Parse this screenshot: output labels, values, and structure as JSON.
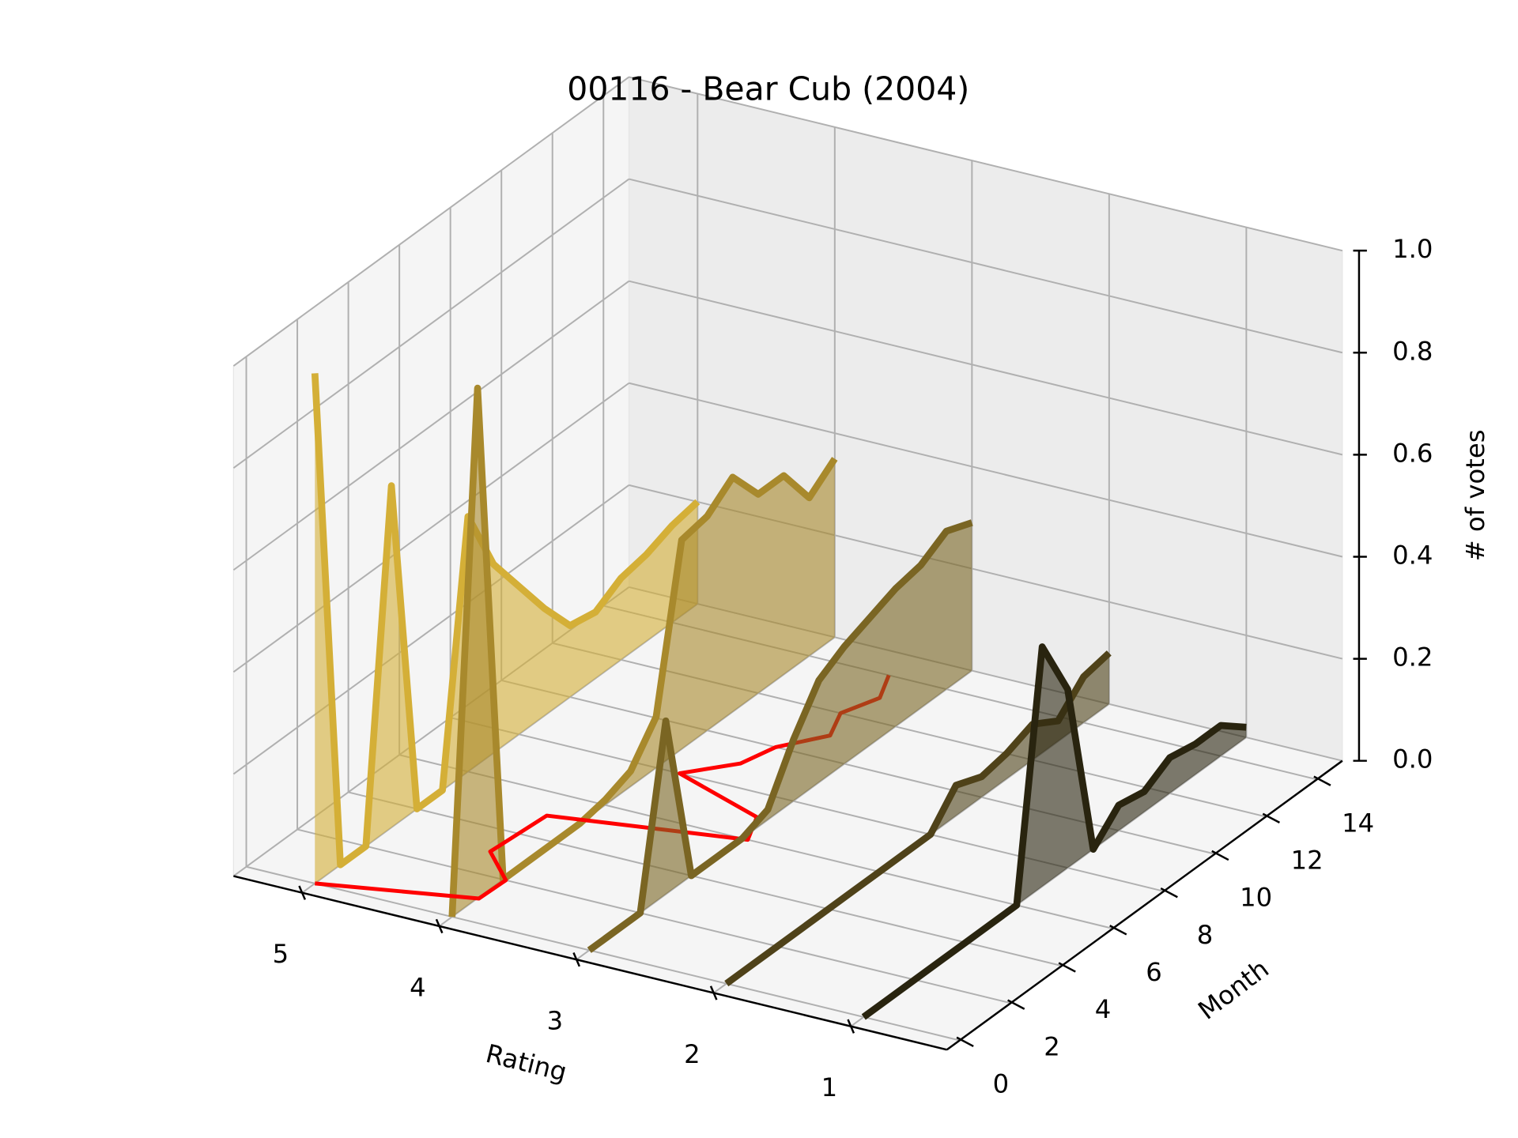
{
  "chart_data": {
    "type": "line3d",
    "title": "00116 - Bear Cub (2004)",
    "xlabel": "Rating",
    "ylabel": "Month",
    "zlabel": "# of votes",
    "xlim": [
      0.3,
      5.5
    ],
    "xticks": [
      5,
      4,
      3,
      2,
      1
    ],
    "ylim": [
      -0.5,
      15
    ],
    "yticks": [
      0,
      2,
      4,
      6,
      8,
      10,
      12,
      14
    ],
    "zlim": [
      0,
      1
    ],
    "zticks": [
      {
        "value": 0,
        "label": "0.0"
      },
      0.2,
      0.4,
      0.6,
      0.8,
      {
        "value": 1,
        "label": "1.0"
      }
    ],
    "grid": true,
    "fill_alpha": 0.6,
    "months": [
      0,
      1,
      2,
      3,
      4,
      5,
      6,
      7,
      8,
      9,
      10,
      11,
      12,
      13,
      14,
      15
    ],
    "series": [
      {
        "rating": 5,
        "color": "#d4af37",
        "values": [
          1.0,
          0,
          0,
          0.67,
          0,
          0,
          0.5,
          0.37,
          0.29,
          0.21,
          0.14,
          0.13,
          0.16,
          0.17,
          0.19,
          0.2
        ]
      },
      {
        "rating": 4,
        "color": "#a8892c",
        "values": [
          0,
          1.0,
          0,
          0,
          0,
          0,
          0.01,
          0.03,
          0.1,
          0.41,
          0.42,
          0.46,
          0.39,
          0.39,
          0.31,
          0.35
        ]
      },
      {
        "rating": 3,
        "color": "#7a6523",
        "values": [
          0,
          0,
          0,
          0.34,
          0,
          0,
          0,
          0.02,
          0.12,
          0.2,
          0.23,
          0.25,
          0.27,
          0.28,
          0.31,
          0.29
        ]
      },
      {
        "rating": 2,
        "color": "#4f4219",
        "values": [
          0,
          0,
          0,
          0,
          0,
          0,
          0,
          0,
          0,
          0.06,
          0.04,
          0.05,
          0.07,
          0.04,
          0.09,
          0.1
        ]
      },
      {
        "rating": 1,
        "color": "#29240f",
        "values": [
          0,
          0,
          0,
          0,
          0,
          0,
          0,
          0.47,
          0.35,
          0,
          0.05,
          0.04,
          0.07,
          0.06,
          0.06,
          0.02
        ]
      }
    ],
    "mean_line": {
      "color": "#ff0000",
      "months": [
        0,
        1,
        2,
        3,
        5,
        6,
        7,
        8,
        9,
        10,
        11,
        12,
        13,
        14
      ],
      "ratings": [
        5,
        3.99,
        3.98,
        4.28,
        4.24,
        2.96,
        3.08,
        3.83,
        3.57,
        3.5,
        3.29,
        3.4,
        3.3,
        3.42
      ]
    }
  }
}
